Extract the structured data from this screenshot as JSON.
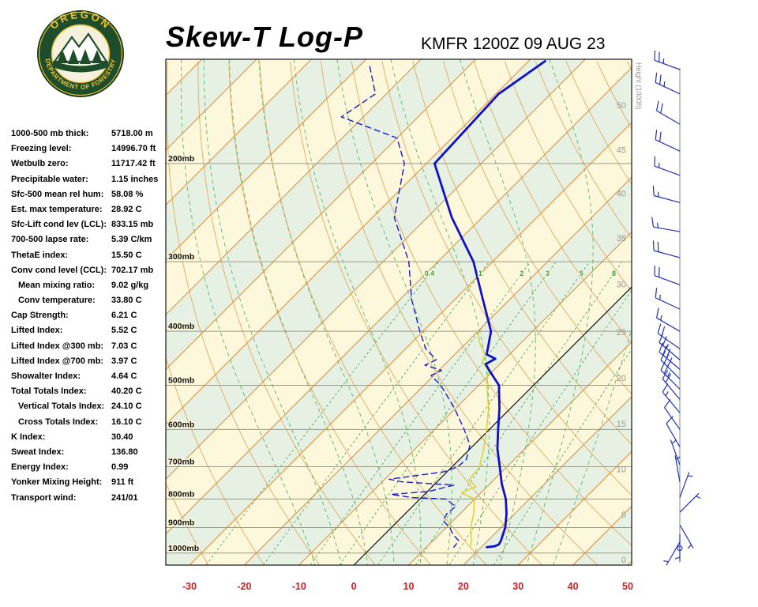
{
  "header": {
    "title": "Skew-T Log-P",
    "station": "KMFR 1200Z 09 AUG 23",
    "logo_top": "OREGON",
    "logo_bottom": "DEPARTMENT OF FORESTRY"
  },
  "indices": [
    {
      "label": "1000-500 mb thick:",
      "value": "5718.00 m"
    },
    {
      "label": "Freezing level:",
      "value": "14996.70 ft"
    },
    {
      "label": "Wetbulb zero:",
      "value": "11717.42 ft"
    },
    {
      "label": "Precipitable water:",
      "value": "1.15 inches"
    },
    {
      "label": "Sfc-500 mean rel hum:",
      "value": "58.08 %"
    },
    {
      "label": "Est. max temperature:",
      "value": "28.92 C"
    },
    {
      "label": "Sfc-Lift cond lev (LCL):",
      "value": "833.15 mb"
    },
    {
      "label": "700-500 lapse rate:",
      "value": "5.39 C/km"
    },
    {
      "label": "ThetaE index:",
      "value": "15.50 C"
    },
    {
      "label": "Conv cond level (CCL):",
      "value": "702.17 mb"
    },
    {
      "label": "Mean mixing ratio:",
      "value": "9.02 g/kg",
      "indent": true
    },
    {
      "label": "Conv temperature:",
      "value": "33.80 C",
      "indent": true
    },
    {
      "label": "Cap Strength:",
      "value": "6.21 C"
    },
    {
      "label": "Lifted Index:",
      "value": "5.52 C"
    },
    {
      "label": "Lifted Index @300 mb:",
      "value": "7.03 C"
    },
    {
      "label": "Lifted Index @700 mb:",
      "value": "3.97 C"
    },
    {
      "label": "Showalter Index:",
      "value": "4.64 C"
    },
    {
      "label": "Total Totals Index:",
      "value": "40.20 C"
    },
    {
      "label": "Vertical Totals Index:",
      "value": "24.10 C",
      "indent": true
    },
    {
      "label": "Cross Totals Index:",
      "value": "16.10 C",
      "indent": true
    },
    {
      "label": "K Index:",
      "value": "30.40"
    },
    {
      "label": "Sweat Index:",
      "value": "136.80"
    },
    {
      "label": "Energy Index:",
      "value": "0.99"
    },
    {
      "label": "Yonker Mixing Height:",
      "value": "911 ft"
    },
    {
      "label": "Transport wind:",
      "value": "241/01"
    }
  ],
  "chart_data": {
    "type": "line",
    "title": "Skew-T Log-P",
    "station": "KMFR 1200Z 09 AUG 23",
    "temp_axis_c": [
      -30,
      -20,
      -10,
      0,
      10,
      20,
      30,
      40,
      50
    ],
    "pressure_levels_mb": [
      200,
      300,
      400,
      500,
      600,
      700,
      800,
      900,
      1000
    ],
    "pressure_range_mb": [
      130,
      1051
    ],
    "height_scale": {
      "label": "Height (1000ft)",
      "ticks": [
        {
          "kft": 50,
          "p": 157
        },
        {
          "kft": 45,
          "p": 189
        },
        {
          "kft": 40,
          "p": 226
        },
        {
          "kft": 35,
          "p": 272
        },
        {
          "kft": 30,
          "p": 329
        },
        {
          "kft": 25,
          "p": 401
        },
        {
          "kft": 20,
          "p": 485
        },
        {
          "kft": 15,
          "p": 586
        },
        {
          "kft": 10,
          "p": 707
        },
        {
          "kft": 5,
          "p": 853
        },
        {
          "kft": 0,
          "p": 1027
        }
      ]
    },
    "isotherm_step_c": 10,
    "zero_isotherm_highlight_c": 0,
    "dry_adiabat_step_c": 10,
    "moist_adiabats_c": [
      -10,
      -5,
      0,
      5,
      10,
      15,
      20,
      25,
      30,
      35
    ],
    "mixing_ratio_gkg": [
      0.4,
      1,
      2,
      3,
      5,
      8,
      12,
      20
    ],
    "mixing_ratio_labeled": [
      0.4,
      1,
      2,
      3,
      5,
      8
    ],
    "series": [
      {
        "name": "temperature",
        "color": "#0f10c8",
        "style": "solid",
        "width": 2.8,
        "points": [
          [
            131,
            -57
          ],
          [
            150,
            -59.5
          ],
          [
            200,
            -58.5
          ],
          [
            250,
            -45.5
          ],
          [
            300,
            -33.5
          ],
          [
            350,
            -25
          ],
          [
            400,
            -17.6
          ],
          [
            430,
            -15
          ],
          [
            440,
            -14.2
          ],
          [
            448,
            -11.8
          ],
          [
            458,
            -12.6
          ],
          [
            470,
            -10.8
          ],
          [
            500,
            -6.3
          ],
          [
            550,
            -2
          ],
          [
            600,
            1.6
          ],
          [
            650,
            5
          ],
          [
            700,
            8.7
          ],
          [
            750,
            12.1
          ],
          [
            800,
            15.7
          ],
          [
            850,
            18.5
          ],
          [
            900,
            20.8
          ],
          [
            925,
            21.6
          ],
          [
            950,
            22.4
          ],
          [
            965,
            22.7
          ],
          [
            972,
            22.3
          ],
          [
            976,
            21
          ]
        ]
      },
      {
        "name": "dewpoint",
        "color": "#1b1bcc",
        "style": "dashed",
        "width": 1.4,
        "points": [
          [
            134,
            -88
          ],
          [
            150,
            -82
          ],
          [
            165,
            -84
          ],
          [
            180,
            -70
          ],
          [
            200,
            -64
          ],
          [
            250,
            -56
          ],
          [
            300,
            -45.3
          ],
          [
            350,
            -38
          ],
          [
            400,
            -30.6
          ],
          [
            430,
            -26.3
          ],
          [
            450,
            -22.4
          ],
          [
            460,
            -23.5
          ],
          [
            470,
            -19.5
          ],
          [
            480,
            -20.5
          ],
          [
            500,
            -16.9
          ],
          [
            550,
            -10.2
          ],
          [
            600,
            -4.6
          ],
          [
            640,
            -0.7
          ],
          [
            680,
            1.3
          ],
          [
            700,
            1
          ],
          [
            715,
            -0.6
          ],
          [
            737,
            -9.2
          ],
          [
            745,
            -6.5
          ],
          [
            755,
            3.7
          ],
          [
            775,
            0.3
          ],
          [
            785,
            -6.1
          ],
          [
            795,
            -1.6
          ],
          [
            800,
            4.8
          ],
          [
            825,
            7.9
          ],
          [
            850,
            7.6
          ],
          [
            875,
            8.2
          ],
          [
            900,
            10.7
          ],
          [
            925,
            12.4
          ],
          [
            950,
            14.7
          ],
          [
            976,
            15
          ]
        ]
      },
      {
        "name": "wetbulb",
        "color": "#ddd12f",
        "style": "solid",
        "width": 1.5,
        "points": [
          [
            400,
            -20
          ],
          [
            420,
            -17.5
          ],
          [
            440,
            -14.5
          ],
          [
            455,
            -13.5
          ],
          [
            470,
            -11
          ],
          [
            500,
            -8.5
          ],
          [
            550,
            -4
          ],
          [
            600,
            -0.5
          ],
          [
            650,
            2.5
          ],
          [
            700,
            5
          ],
          [
            740,
            5.5
          ],
          [
            760,
            8
          ],
          [
            780,
            6.5
          ],
          [
            800,
            10
          ],
          [
            850,
            12.5
          ],
          [
            900,
            14.5
          ],
          [
            950,
            17
          ],
          [
            976,
            18
          ]
        ]
      }
    ],
    "wind_barbs": {
      "color": "#2233bb",
      "unit": "kt",
      "levels": [
        {
          "p": 135,
          "dir": 290,
          "spd": 25
        },
        {
          "p": 150,
          "dir": 295,
          "spd": 25
        },
        {
          "p": 170,
          "dir": 300,
          "spd": 20
        },
        {
          "p": 190,
          "dir": 295,
          "spd": 20
        },
        {
          "p": 210,
          "dir": 290,
          "spd": 15
        },
        {
          "p": 235,
          "dir": 285,
          "spd": 15
        },
        {
          "p": 265,
          "dir": 280,
          "spd": 15
        },
        {
          "p": 295,
          "dir": 285,
          "spd": 20
        },
        {
          "p": 330,
          "dir": 290,
          "spd": 20
        },
        {
          "p": 365,
          "dir": 295,
          "spd": 15
        },
        {
          "p": 400,
          "dir": 300,
          "spd": 15
        },
        {
          "p": 430,
          "dir": 305,
          "spd": 20
        },
        {
          "p": 450,
          "dir": 310,
          "spd": 25
        },
        {
          "p": 468,
          "dir": 310,
          "spd": 30
        },
        {
          "p": 487,
          "dir": 315,
          "spd": 30
        },
        {
          "p": 508,
          "dir": 315,
          "spd": 25
        },
        {
          "p": 530,
          "dir": 320,
          "spd": 20
        },
        {
          "p": 560,
          "dir": 320,
          "spd": 15
        },
        {
          "p": 600,
          "dir": 325,
          "spd": 10
        },
        {
          "p": 645,
          "dir": 330,
          "spd": 10
        },
        {
          "p": 695,
          "dir": 340,
          "spd": 5
        },
        {
          "p": 745,
          "dir": 350,
          "spd": 5
        },
        {
          "p": 795,
          "dir": 20,
          "spd": 5
        },
        {
          "p": 845,
          "dir": 45,
          "spd": 5
        },
        {
          "p": 890,
          "dir": 150,
          "spd": 5
        },
        {
          "p": 925,
          "dir": 180,
          "spd": 5
        },
        {
          "p": 955,
          "dir": 210,
          "spd": 3
        },
        {
          "p": 980,
          "dir": 240,
          "spd": 2
        }
      ]
    },
    "colors": {
      "band_cool": "#e6f1e3",
      "band_warm": "#fdf7dc",
      "isotherm": "#dd8f3a",
      "dry_adiabat": "#e0aa60",
      "moist_adiabat": "#58b868",
      "mixing_ratio": "#3f9e4f",
      "isobar": "#9b9b85",
      "zero_isotherm": "#1a1a1a",
      "axis_label": "#cc2222",
      "height_label": "#999999",
      "pressure_label": "#111111"
    }
  }
}
